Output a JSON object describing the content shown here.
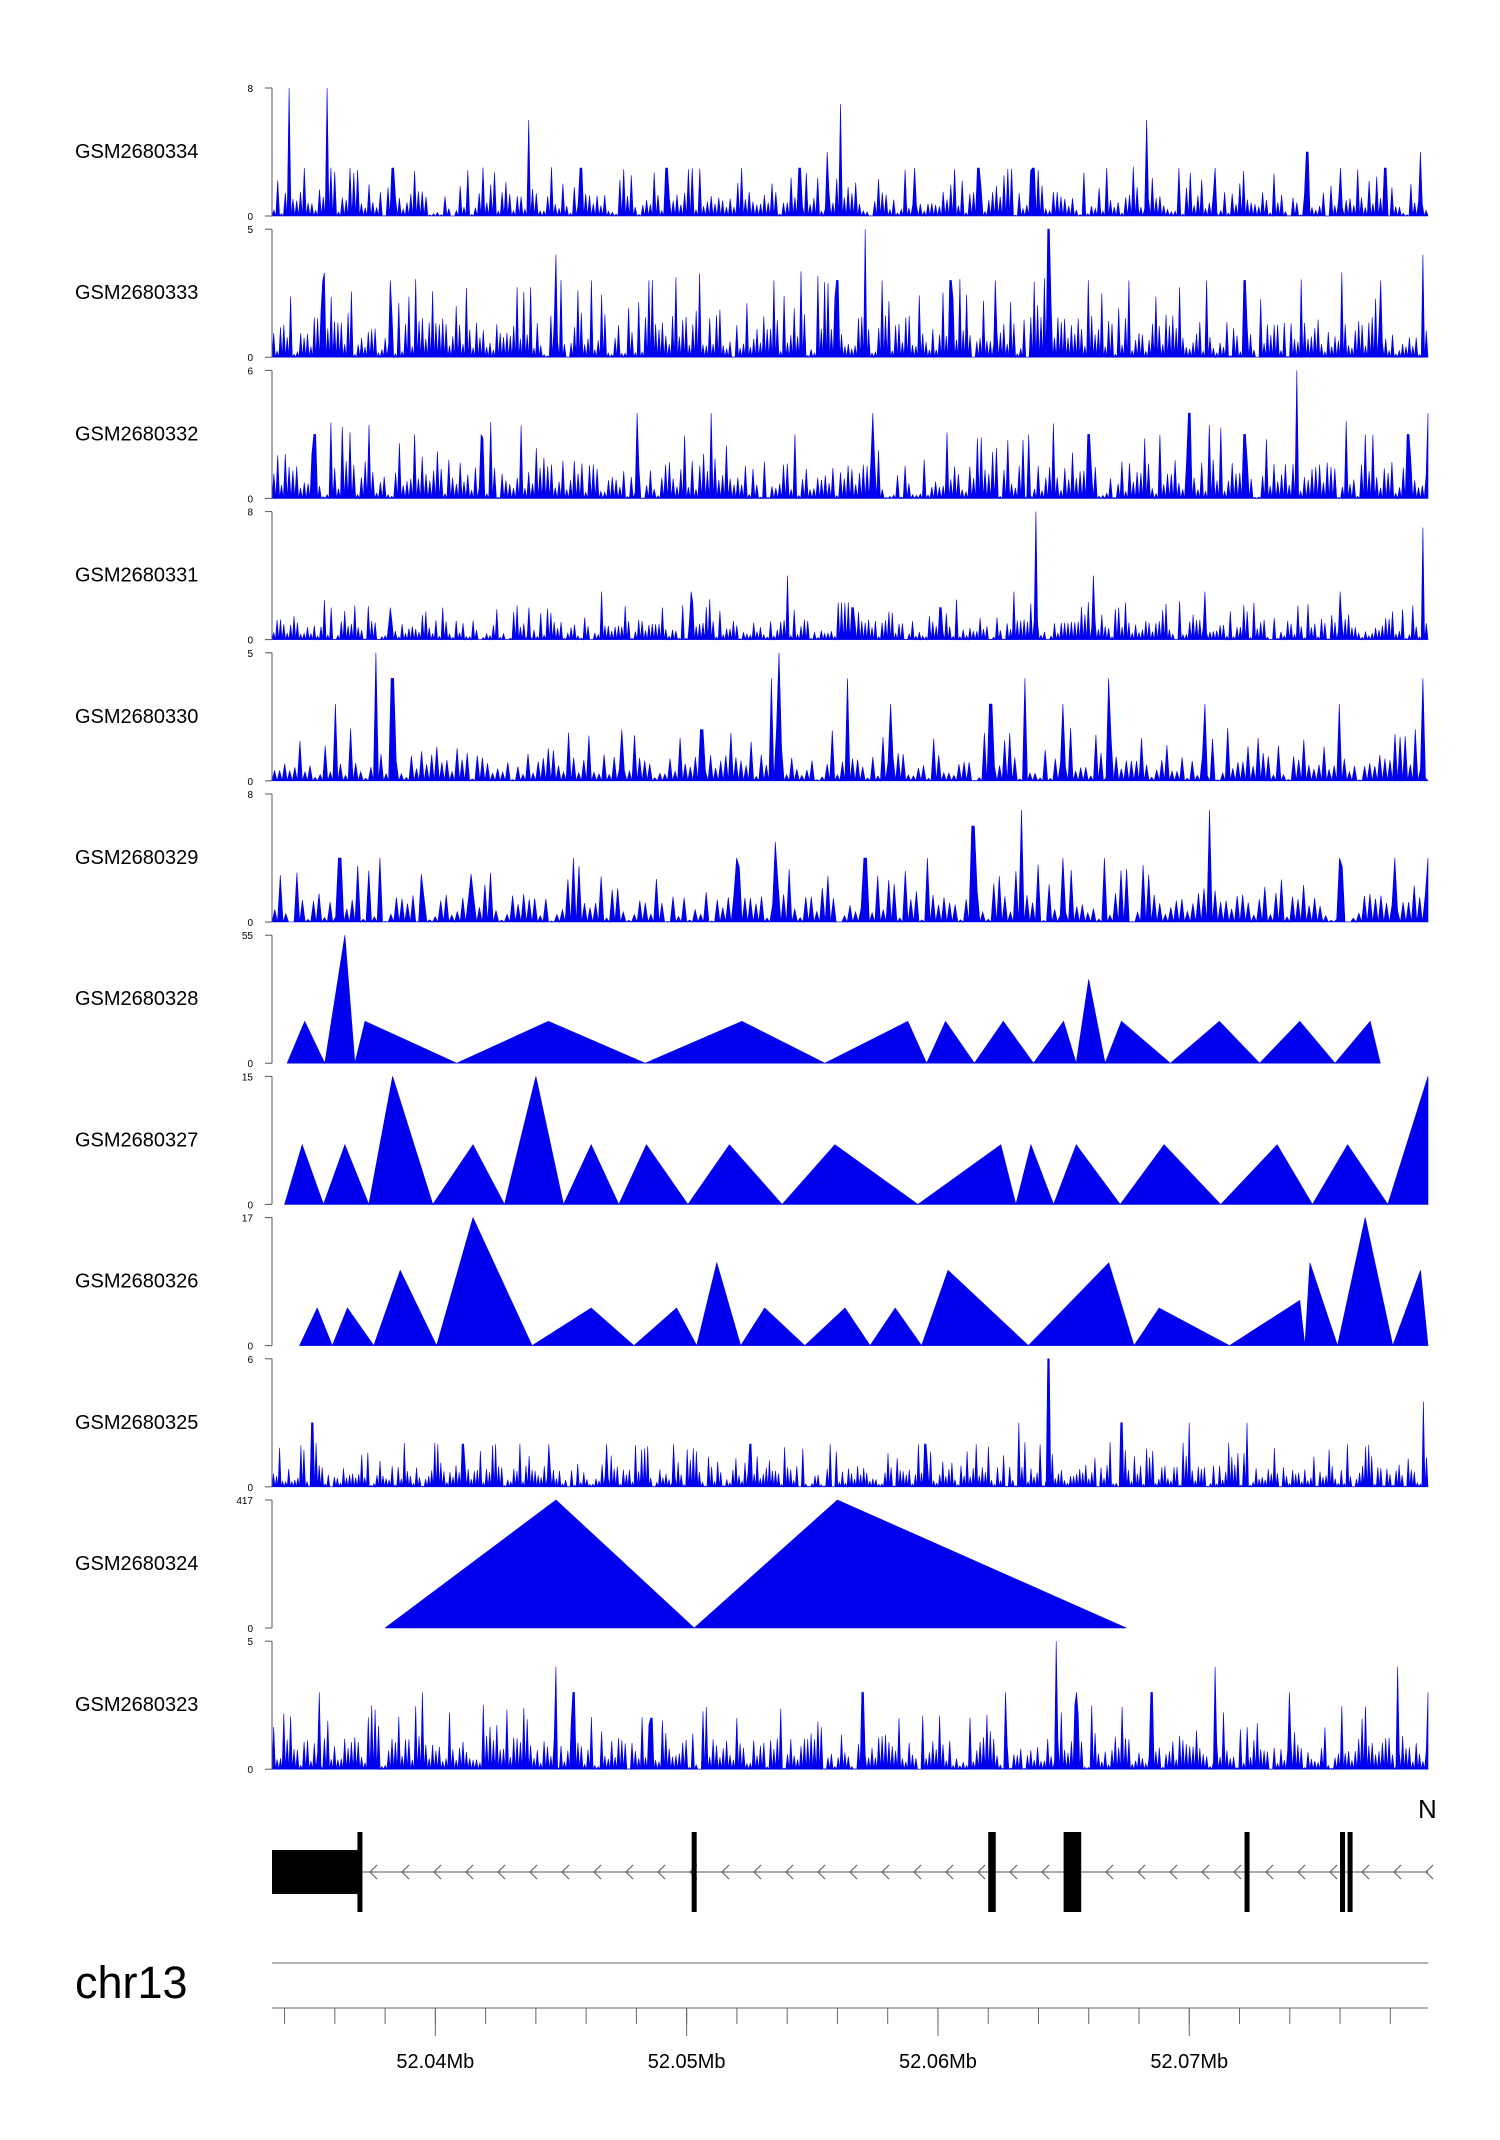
{
  "chart_data": {
    "type": "area",
    "chromosome": "chr13",
    "axis": {
      "xlim_mb": [
        52.0335,
        52.0795
      ],
      "major_ticks": [
        "52.04Mb",
        "52.05Mb",
        "52.06Mb",
        "52.07Mb"
      ],
      "major_tick_values_mb": [
        52.04,
        52.05,
        52.06,
        52.07
      ],
      "minor_tick_step_mb": 0.002
    },
    "fill_color": "#0000ee",
    "tracks": [
      {
        "name": "GSM2680334",
        "ymax": 8,
        "ymin": 0,
        "peaks": [
          [
            52.0342,
            8
          ],
          [
            52.0357,
            8
          ],
          [
            52.0348,
            3
          ],
          [
            52.0366,
            3
          ],
          [
            52.0383,
            3
          ],
          [
            52.0437,
            6
          ],
          [
            52.0458,
            3
          ],
          [
            52.0492,
            3
          ],
          [
            52.0522,
            3
          ],
          [
            52.0556,
            4
          ],
          [
            52.0545,
            3
          ],
          [
            52.0561,
            7
          ],
          [
            52.0591,
            3
          ],
          [
            52.0616,
            3
          ],
          [
            52.0638,
            3
          ],
          [
            52.0667,
            3
          ],
          [
            52.0683,
            6
          ],
          [
            52.0696,
            3
          ],
          [
            52.071,
            3
          ],
          [
            52.0747,
            4
          ],
          [
            52.076,
            3
          ],
          [
            52.0778,
            3
          ],
          [
            52.0792,
            4
          ]
        ],
        "noise": 2.2,
        "density": 1.6
      },
      {
        "name": "GSM2680333",
        "ymax": 5,
        "ymin": 0,
        "peaks": [
          [
            52.0355,
            3
          ],
          [
            52.0382,
            3
          ],
          [
            52.0448,
            4
          ],
          [
            52.0462,
            3
          ],
          [
            52.0485,
            3
          ],
          [
            52.0535,
            3
          ],
          [
            52.0571,
            5
          ],
          [
            52.056,
            3
          ],
          [
            52.0578,
            3
          ],
          [
            52.0605,
            3
          ],
          [
            52.0623,
            3
          ],
          [
            52.0644,
            5
          ],
          [
            52.0676,
            3
          ],
          [
            52.0707,
            3
          ],
          [
            52.0722,
            3
          ],
          [
            52.0776,
            3
          ],
          [
            52.0793,
            4
          ]
        ],
        "noise": 2.4,
        "density": 1.8
      },
      {
        "name": "GSM2680332",
        "ymax": 6,
        "ymin": 0,
        "peaks": [
          [
            52.0352,
            3
          ],
          [
            52.0392,
            3
          ],
          [
            52.0418,
            3
          ],
          [
            52.048,
            4
          ],
          [
            52.051,
            4
          ],
          [
            52.0543,
            3
          ],
          [
            52.0574,
            4
          ],
          [
            52.0636,
            3
          ],
          [
            52.066,
            3
          ],
          [
            52.07,
            4
          ],
          [
            52.0722,
            3
          ],
          [
            52.0743,
            6
          ],
          [
            52.077,
            3
          ],
          [
            52.0787,
            3
          ],
          [
            52.0795,
            4
          ]
        ],
        "noise": 2.6,
        "density": 1.6
      },
      {
        "name": "GSM2680331",
        "ymax": 8,
        "ymin": 0,
        "peaks": [
          [
            52.0382,
            2
          ],
          [
            52.0403,
            2
          ],
          [
            52.0437,
            2
          ],
          [
            52.0466,
            3
          ],
          [
            52.0502,
            3
          ],
          [
            52.054,
            4
          ],
          [
            52.0566,
            2
          ],
          [
            52.0601,
            2
          ],
          [
            52.063,
            3
          ],
          [
            52.0639,
            8
          ],
          [
            52.0662,
            4
          ],
          [
            52.0706,
            3
          ],
          [
            52.076,
            3
          ],
          [
            52.0793,
            7
          ]
        ],
        "noise": 1.8,
        "density": 1.8
      },
      {
        "name": "GSM2680330",
        "ymax": 5,
        "ymin": 0,
        "peaks": [
          [
            52.0376,
            5
          ],
          [
            52.0383,
            4
          ],
          [
            52.036,
            3
          ],
          [
            52.0474,
            2
          ],
          [
            52.0506,
            2
          ],
          [
            52.0534,
            4
          ],
          [
            52.0537,
            5
          ],
          [
            52.0564,
            4
          ],
          [
            52.0581,
            3
          ],
          [
            52.0621,
            3
          ],
          [
            52.0635,
            4
          ],
          [
            52.065,
            3
          ],
          [
            52.0668,
            4
          ],
          [
            52.0706,
            3
          ],
          [
            52.076,
            3
          ],
          [
            52.0793,
            4
          ]
        ],
        "noise": 1.5,
        "density": 1.2
      },
      {
        "name": "GSM2680329",
        "ymax": 8,
        "ymin": 0,
        "peaks": [
          [
            52.0362,
            4
          ],
          [
            52.0378,
            4
          ],
          [
            52.0394,
            3
          ],
          [
            52.0414,
            3
          ],
          [
            52.0455,
            4
          ],
          [
            52.052,
            4
          ],
          [
            52.0535,
            5
          ],
          [
            52.0571,
            4
          ],
          [
            52.0596,
            4
          ],
          [
            52.0614,
            6
          ],
          [
            52.0633,
            7
          ],
          [
            52.065,
            4
          ],
          [
            52.0666,
            4
          ],
          [
            52.0708,
            7
          ],
          [
            52.076,
            4
          ],
          [
            52.0782,
            4
          ],
          [
            52.0795,
            4
          ]
        ],
        "noise": 2.6,
        "density": 1.1
      },
      {
        "name": "GSM2680328",
        "ymax": 55,
        "ymin": 0,
        "peaks": [
          [
            52.0348,
            18
          ],
          [
            52.0364,
            55
          ],
          [
            52.0372,
            18
          ],
          [
            52.0445,
            18
          ],
          [
            52.0522,
            18
          ],
          [
            52.0588,
            18
          ],
          [
            52.0603,
            18
          ],
          [
            52.0626,
            18
          ],
          [
            52.065,
            18
          ],
          [
            52.066,
            36
          ],
          [
            52.0673,
            18
          ],
          [
            52.0712,
            18
          ],
          [
            52.0744,
            18
          ],
          [
            52.0772,
            18
          ]
        ],
        "troughs": [
          52.0345,
          52.039,
          52.0485,
          52.055,
          52.0595,
          52.0615,
          52.0641,
          52.0655,
          52.0683,
          52.0721,
          52.0755,
          52.079
        ],
        "noise": 0,
        "density": 0
      },
      {
        "name": "GSM2680327",
        "ymax": 15,
        "ymin": 0,
        "peaks": [
          [
            52.0347,
            7
          ],
          [
            52.0364,
            7
          ],
          [
            52.0383,
            15
          ],
          [
            52.0415,
            7
          ],
          [
            52.044,
            15
          ],
          [
            52.0462,
            7
          ],
          [
            52.0484,
            7
          ],
          [
            52.0517,
            7
          ],
          [
            52.0559,
            7
          ],
          [
            52.0625,
            7
          ],
          [
            52.0637,
            7
          ],
          [
            52.0655,
            7
          ],
          [
            52.069,
            7
          ],
          [
            52.0735,
            7
          ],
          [
            52.0763,
            7
          ],
          [
            52.0795,
            15
          ]
        ],
        "noise": 0,
        "density": 0
      },
      {
        "name": "GSM2680326",
        "ymax": 17,
        "ymin": 0,
        "peaks": [
          [
            52.0353,
            5
          ],
          [
            52.0365,
            5
          ],
          [
            52.0386,
            10
          ],
          [
            52.0415,
            17
          ],
          [
            52.0462,
            5
          ],
          [
            52.0496,
            5
          ],
          [
            52.0512,
            11
          ],
          [
            52.0531,
            5
          ],
          [
            52.0563,
            5
          ],
          [
            52.0583,
            5
          ],
          [
            52.0604,
            10
          ],
          [
            52.0668,
            11
          ],
          [
            52.0688,
            5
          ],
          [
            52.0744,
            6
          ],
          [
            52.0748,
            11
          ],
          [
            52.077,
            17
          ],
          [
            52.0792,
            10
          ]
        ],
        "noise": 0,
        "density": 0
      },
      {
        "name": "GSM2680325",
        "ymax": 6,
        "ymin": 0,
        "peaks": [
          [
            52.0351,
            3
          ],
          [
            52.0411,
            2
          ],
          [
            52.0445,
            2
          ],
          [
            52.0468,
            2
          ],
          [
            52.0495,
            2
          ],
          [
            52.0525,
            2
          ],
          [
            52.0557,
            2
          ],
          [
            52.0595,
            2
          ],
          [
            52.0615,
            2
          ],
          [
            52.0632,
            3
          ],
          [
            52.0644,
            6
          ],
          [
            52.0673,
            3
          ],
          [
            52.07,
            3
          ],
          [
            52.0723,
            3
          ],
          [
            52.0763,
            2
          ],
          [
            52.0793,
            4
          ]
        ],
        "noise": 1.5,
        "density": 2.0
      },
      {
        "name": "GSM2680324",
        "ymax": 417,
        "ymin": 0,
        "peaks": [
          [
            52.038,
            0
          ],
          [
            52.0448,
            417
          ],
          [
            52.0503,
            0
          ],
          [
            52.056,
            417
          ],
          [
            52.0675,
            0
          ]
        ],
        "noise": 0,
        "density": 0
      },
      {
        "name": "GSM2680323",
        "ymax": 5,
        "ymin": 0,
        "peaks": [
          [
            52.0354,
            3
          ],
          [
            52.0395,
            3
          ],
          [
            52.0448,
            4
          ],
          [
            52.0455,
            3
          ],
          [
            52.0486,
            2
          ],
          [
            52.052,
            2
          ],
          [
            52.057,
            3
          ],
          [
            52.0627,
            3
          ],
          [
            52.0647,
            5
          ],
          [
            52.0655,
            3
          ],
          [
            52.0685,
            3
          ],
          [
            52.071,
            4
          ],
          [
            52.074,
            3
          ],
          [
            52.0783,
            4
          ],
          [
            52.0795,
            3
          ]
        ],
        "noise": 1.8,
        "density": 1.8
      }
    ],
    "gene_model": {
      "strand": "-",
      "label": "N",
      "exons": [
        {
          "start": 52.0335,
          "end": 52.037,
          "type": "utr"
        },
        {
          "start": 52.0369,
          "end": 52.037,
          "type": "cds"
        },
        {
          "start": 52.0502,
          "end": 52.0503,
          "type": "cds"
        },
        {
          "start": 52.062,
          "end": 52.0623,
          "type": "cds"
        },
        {
          "start": 52.065,
          "end": 52.0657,
          "type": "cds"
        },
        {
          "start": 52.0722,
          "end": 52.0723,
          "type": "cds"
        },
        {
          "start": 52.076,
          "end": 52.0761,
          "type": "cds"
        },
        {
          "start": 52.0763,
          "end": 52.0764,
          "type": "cds"
        }
      ]
    }
  }
}
